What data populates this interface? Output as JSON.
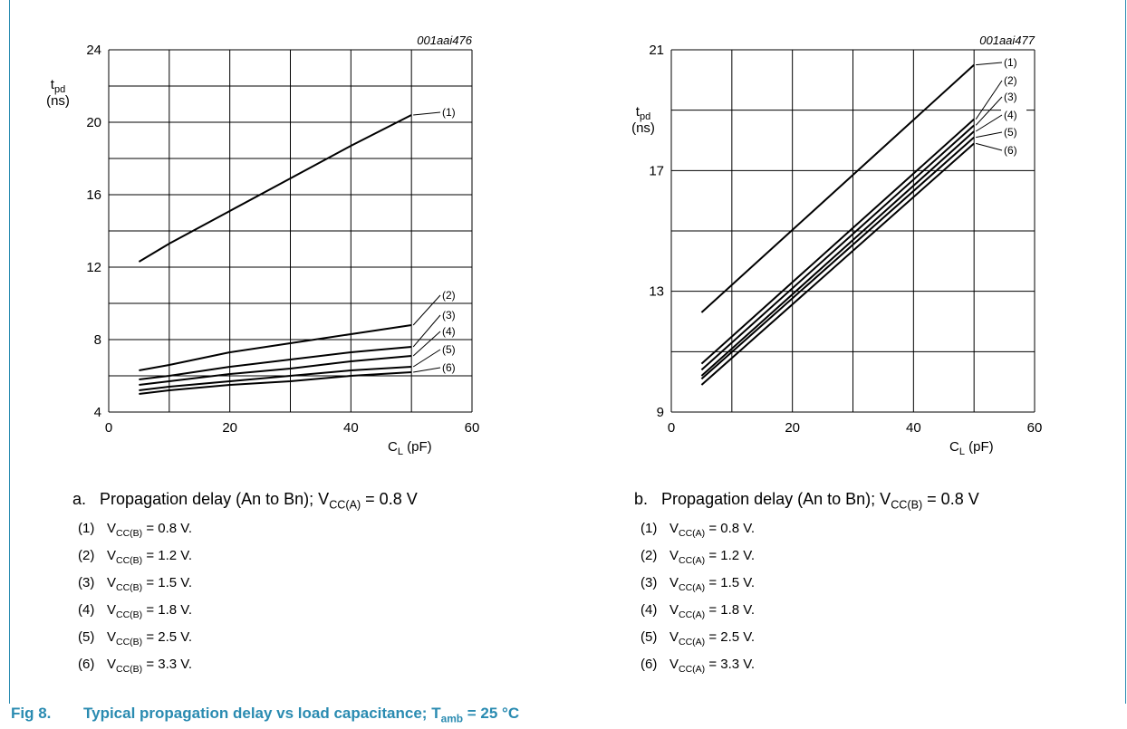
{
  "chart_data": [
    {
      "type": "line",
      "id_label": "001aai476",
      "ylabel_main": "t",
      "ylabel_sub": "pd",
      "ylabel_unit": "(ns)",
      "xlabel_main": "C",
      "xlabel_sub": "L",
      "xlabel_unit": " (pF)",
      "xlim": [
        0,
        60
      ],
      "ylim": [
        4,
        24
      ],
      "xticks": [
        0,
        20,
        40,
        60
      ],
      "yticks": [
        4,
        8,
        12,
        16,
        20,
        24
      ],
      "grid_x": [
        0,
        10,
        20,
        30,
        40,
        50,
        60
      ],
      "grid_y": [
        4,
        6,
        8,
        10,
        12,
        14,
        16,
        18,
        20,
        22,
        24
      ],
      "series": [
        {
          "name": "(1)",
          "x": [
            5,
            10,
            20,
            30,
            40,
            50
          ],
          "y": [
            12.3,
            13.3,
            15.1,
            16.9,
            18.7,
            20.4
          ]
        },
        {
          "name": "(2)",
          "x": [
            5,
            10,
            20,
            30,
            40,
            50
          ],
          "y": [
            6.3,
            6.6,
            7.3,
            7.8,
            8.3,
            8.8
          ]
        },
        {
          "name": "(3)",
          "x": [
            5,
            10,
            20,
            30,
            40,
            50
          ],
          "y": [
            5.8,
            6.0,
            6.5,
            6.9,
            7.3,
            7.6
          ]
        },
        {
          "name": "(4)",
          "x": [
            5,
            10,
            20,
            30,
            40,
            50
          ],
          "y": [
            5.5,
            5.7,
            6.1,
            6.4,
            6.8,
            7.1
          ]
        },
        {
          "name": "(5)",
          "x": [
            5,
            10,
            20,
            30,
            40,
            50
          ],
          "y": [
            5.2,
            5.4,
            5.7,
            6.0,
            6.3,
            6.5
          ]
        },
        {
          "name": "(6)",
          "x": [
            5,
            10,
            20,
            30,
            40,
            50
          ],
          "y": [
            5.0,
            5.2,
            5.5,
            5.7,
            6.0,
            6.2
          ]
        }
      ]
    },
    {
      "type": "line",
      "id_label": "001aai477",
      "ylabel_main": "t",
      "ylabel_sub": "pd",
      "ylabel_unit": "(ns)",
      "xlabel_main": "C",
      "xlabel_sub": "L",
      "xlabel_unit": " (pF)",
      "xlim": [
        0,
        60
      ],
      "ylim": [
        9,
        21
      ],
      "xticks": [
        0,
        20,
        40,
        60
      ],
      "yticks": [
        9,
        13,
        17,
        21
      ],
      "grid_x": [
        0,
        10,
        20,
        30,
        40,
        50,
        60
      ],
      "grid_y": [
        9,
        11,
        13,
        15,
        17,
        19,
        21
      ],
      "series": [
        {
          "name": "(1)",
          "x": [
            5,
            50
          ],
          "y": [
            12.3,
            20.5
          ]
        },
        {
          "name": "(2)",
          "x": [
            5,
            50
          ],
          "y": [
            10.6,
            18.7
          ]
        },
        {
          "name": "(3)",
          "x": [
            5,
            50
          ],
          "y": [
            10.4,
            18.5
          ]
        },
        {
          "name": "(4)",
          "x": [
            5,
            50
          ],
          "y": [
            10.2,
            18.3
          ]
        },
        {
          "name": "(5)",
          "x": [
            5,
            50
          ],
          "y": [
            10.1,
            18.1
          ]
        },
        {
          "name": "(6)",
          "x": [
            5,
            50
          ],
          "y": [
            9.9,
            17.9
          ]
        }
      ]
    }
  ],
  "caption_left": {
    "prefix": "a.",
    "text": "Propagation delay (An to Bn); V",
    "sub": "CC(A)",
    "suffix": " = 0.8 V"
  },
  "caption_right": {
    "prefix": "b.",
    "text": "Propagation delay (An to Bn); V",
    "sub": "CC(B)",
    "suffix": " = 0.8 V"
  },
  "legend_left": [
    {
      "num": "(1)",
      "v": "V",
      "sub": "CC(B)",
      "val": " = 0.8 V."
    },
    {
      "num": "(2)",
      "v": "V",
      "sub": "CC(B)",
      "val": " = 1.2 V."
    },
    {
      "num": "(3)",
      "v": "V",
      "sub": "CC(B)",
      "val": " = 1.5 V."
    },
    {
      "num": "(4)",
      "v": "V",
      "sub": "CC(B)",
      "val": " = 1.8 V."
    },
    {
      "num": "(5)",
      "v": "V",
      "sub": "CC(B)",
      "val": " = 2.5 V."
    },
    {
      "num": "(6)",
      "v": "V",
      "sub": "CC(B)",
      "val": " = 3.3 V."
    }
  ],
  "legend_right": [
    {
      "num": "(1)",
      "v": "V",
      "sub": "CC(A)",
      "val": " = 0.8 V."
    },
    {
      "num": "(2)",
      "v": "V",
      "sub": "CC(A)",
      "val": " = 1.2 V."
    },
    {
      "num": "(3)",
      "v": "V",
      "sub": "CC(A)",
      "val": " = 1.5 V."
    },
    {
      "num": "(4)",
      "v": "V",
      "sub": "CC(A)",
      "val": " = 1.8 V."
    },
    {
      "num": "(5)",
      "v": "V",
      "sub": "CC(A)",
      "val": " = 2.5 V."
    },
    {
      "num": "(6)",
      "v": "V",
      "sub": "CC(A)",
      "val": " = 3.3 V."
    }
  ],
  "figure": {
    "number": "Fig 8.",
    "title": "Typical propagation delay vs load capacitance; T",
    "sub": "amb",
    "suffix": " = 25 °C"
  },
  "colors": {
    "accent": "#2a8bb1",
    "line": "#000000"
  }
}
